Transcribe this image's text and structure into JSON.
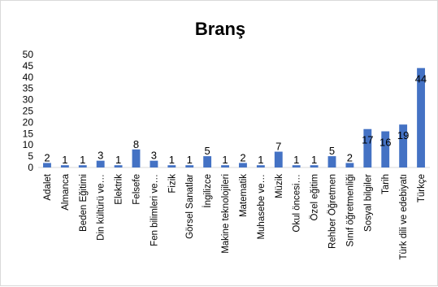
{
  "chart_data": {
    "type": "bar",
    "title": "Branş",
    "categories": [
      "Adalet",
      "Almanca",
      "Beden Eğitimi",
      "Din kültürü ve…",
      "Elektrik",
      "Felsefe",
      "Fen bilimleri ve…",
      "Fizik",
      "Görsel Sanatlar",
      "İngilizce",
      "Makine teknolojileri",
      "Matematik",
      "Muhasebe ve…",
      "Müzik",
      "Okul öncesi…",
      "Özel eğitim",
      "Rehber Öğretmen",
      "Sınıf öğretmenliği",
      "Sosyal bilgiler",
      "Tarih",
      "Türk dili ve edebiyatı",
      "Türkçe"
    ],
    "values": [
      2,
      1,
      1,
      3,
      1,
      8,
      3,
      1,
      1,
      5,
      1,
      2,
      1,
      7,
      1,
      1,
      5,
      2,
      17,
      16,
      19,
      44
    ],
    "ylim": [
      0,
      50
    ],
    "yticks": [
      0,
      5,
      10,
      15,
      20,
      25,
      30,
      35,
      40,
      45,
      50
    ],
    "grid": false,
    "colors": {
      "bar": "#4472c4",
      "text": "#000000",
      "axis": "#d9d9d9"
    }
  }
}
